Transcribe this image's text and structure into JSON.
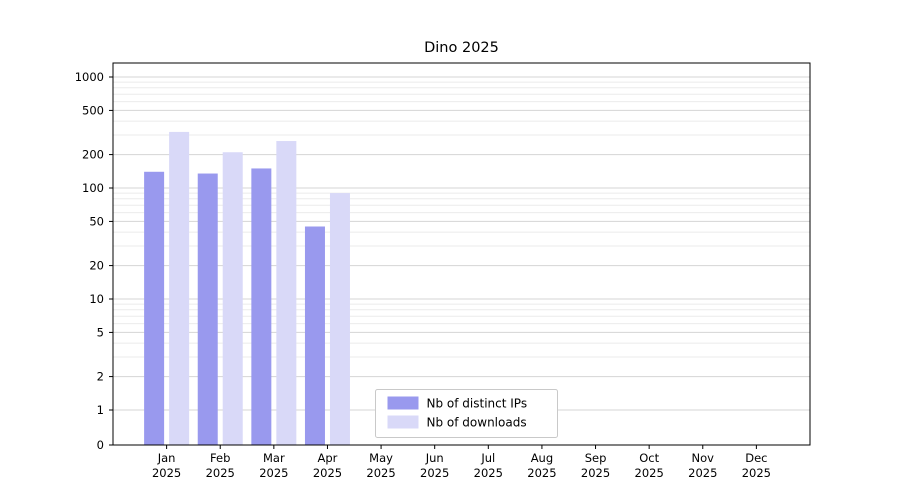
{
  "chart_data": {
    "type": "bar",
    "title": "Dino 2025",
    "categories": [
      "Jan",
      "Feb",
      "Mar",
      "Apr",
      "May",
      "Jun",
      "Jul",
      "Aug",
      "Sep",
      "Oct",
      "Nov",
      "Dec"
    ],
    "category_year": "2025",
    "series": [
      {
        "name": "Nb of distinct IPs",
        "color": "#9999ee",
        "values": [
          140,
          135,
          150,
          45,
          0,
          0,
          0,
          0,
          0,
          0,
          0,
          0
        ]
      },
      {
        "name": "Nb of downloads",
        "color": "#d9d9f8",
        "values": [
          320,
          210,
          265,
          90,
          0,
          0,
          0,
          0,
          0,
          0,
          0,
          0
        ]
      }
    ],
    "xlabel": "",
    "ylabel": "",
    "y_ticks": [
      0,
      1,
      2,
      5,
      10,
      20,
      50,
      100,
      200,
      500,
      1000
    ],
    "y_minor_ticks": [
      3,
      4,
      6,
      7,
      8,
      9,
      30,
      40,
      60,
      70,
      80,
      90,
      300,
      400,
      600,
      700,
      800,
      900
    ],
    "ylim": [
      0,
      1000
    ],
    "y_scale": "symlog",
    "grid": true,
    "legend_position": "lower center",
    "colors": {
      "axis": "#000000",
      "grid_major": "#d4d4d4",
      "grid_minor": "#ebebeb",
      "legend_border": "#c9c9c9",
      "legend_bg": "#ffffff"
    }
  }
}
